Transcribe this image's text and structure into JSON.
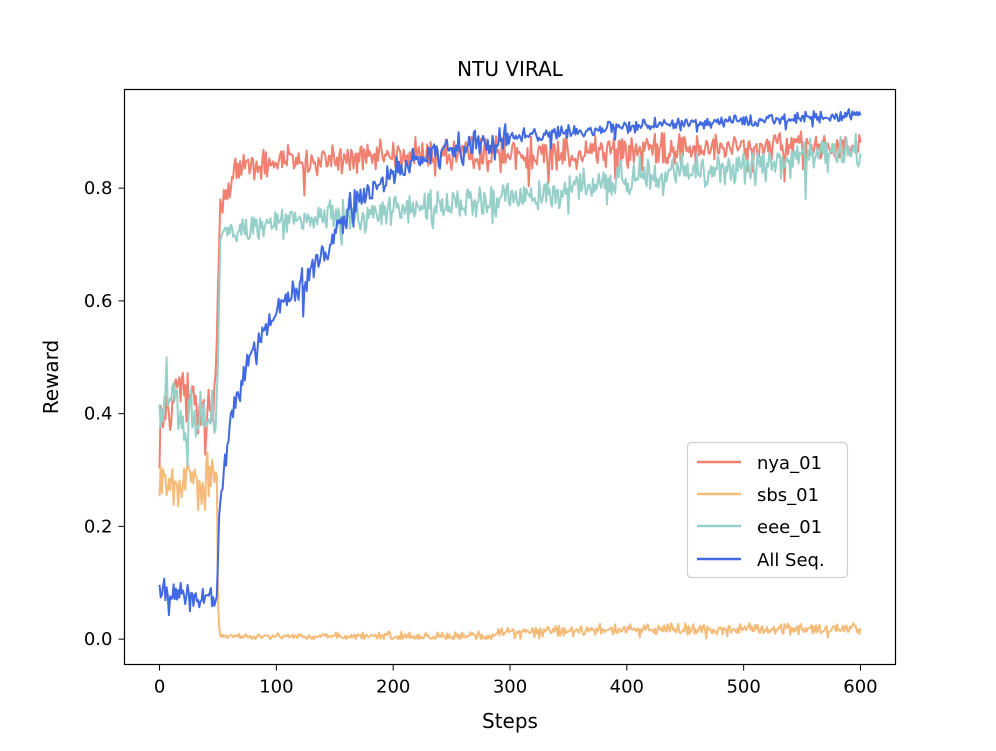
{
  "chart_data": {
    "type": "line",
    "title": "NTU VIRAL",
    "xlabel": "Steps",
    "ylabel": "Reward",
    "xlim": [
      -30,
      630
    ],
    "ylim": [
      -0.045,
      0.975
    ],
    "xticks": [
      0,
      100,
      200,
      300,
      400,
      500,
      600
    ],
    "yticks": [
      0.0,
      0.2,
      0.4,
      0.6,
      0.8
    ],
    "ytick_labels": [
      "0.0",
      "0.2",
      "0.4",
      "0.6",
      "0.8"
    ],
    "legend_position": "lower-right",
    "grid": false,
    "steps": 601,
    "series": [
      {
        "name": "nya_01",
        "color": "#f08070",
        "keypoints": [
          [
            0,
            0.37
          ],
          [
            10,
            0.43
          ],
          [
            20,
            0.45
          ],
          [
            30,
            0.4
          ],
          [
            45,
            0.38
          ],
          [
            48,
            0.45
          ],
          [
            52,
            0.78
          ],
          [
            65,
            0.83
          ],
          [
            100,
            0.85
          ],
          [
            150,
            0.85
          ],
          [
            200,
            0.86
          ],
          [
            300,
            0.86
          ],
          [
            400,
            0.87
          ],
          [
            500,
            0.87
          ],
          [
            600,
            0.88
          ]
        ],
        "noise": [
          0.07,
          0.07,
          0.035,
          0.035,
          0.035,
          0.03,
          0.03
        ],
        "noise_breaks": [
          0,
          50,
          51,
          150,
          300,
          450,
          600
        ]
      },
      {
        "name": "sbs_01",
        "color": "#f5bb78",
        "keypoints": [
          [
            0,
            0.28
          ],
          [
            20,
            0.27
          ],
          [
            40,
            0.28
          ],
          [
            49,
            0.3
          ],
          [
            50,
            0.05
          ],
          [
            52,
            0.005
          ],
          [
            250,
            0.005
          ],
          [
            300,
            0.012
          ],
          [
            400,
            0.018
          ],
          [
            500,
            0.018
          ],
          [
            600,
            0.018
          ]
        ],
        "noise": [
          0.06,
          0.06,
          0.006,
          0.01,
          0.012,
          0.012,
          0.012
        ],
        "noise_breaks": [
          0,
          50,
          51,
          150,
          300,
          450,
          600
        ]
      },
      {
        "name": "eee_01",
        "color": "#96d0c9",
        "keypoints": [
          [
            0,
            0.38
          ],
          [
            5,
            0.45
          ],
          [
            20,
            0.4
          ],
          [
            40,
            0.38
          ],
          [
            49,
            0.4
          ],
          [
            52,
            0.72
          ],
          [
            100,
            0.74
          ],
          [
            200,
            0.76
          ],
          [
            300,
            0.78
          ],
          [
            400,
            0.82
          ],
          [
            500,
            0.84
          ],
          [
            600,
            0.87
          ]
        ],
        "noise": [
          0.06,
          0.06,
          0.03,
          0.035,
          0.04,
          0.035,
          0.035
        ],
        "noise_breaks": [
          0,
          50,
          51,
          150,
          300,
          450,
          600
        ]
      },
      {
        "name": "All Seq.",
        "color": "#4169e1",
        "keypoints": [
          [
            0,
            0.09
          ],
          [
            20,
            0.08
          ],
          [
            40,
            0.07
          ],
          [
            49,
            0.07
          ],
          [
            52,
            0.25
          ],
          [
            60,
            0.38
          ],
          [
            70,
            0.45
          ],
          [
            80,
            0.52
          ],
          [
            100,
            0.58
          ],
          [
            120,
            0.63
          ],
          [
            140,
            0.68
          ],
          [
            160,
            0.76
          ],
          [
            180,
            0.8
          ],
          [
            200,
            0.83
          ],
          [
            250,
            0.87
          ],
          [
            300,
            0.89
          ],
          [
            350,
            0.9
          ],
          [
            400,
            0.91
          ],
          [
            500,
            0.92
          ],
          [
            600,
            0.93
          ]
        ],
        "noise": [
          0.025,
          0.025,
          0.03,
          0.03,
          0.015,
          0.012,
          0.01
        ],
        "noise_breaks": [
          0,
          50,
          51,
          150,
          300,
          450,
          600
        ]
      }
    ]
  }
}
